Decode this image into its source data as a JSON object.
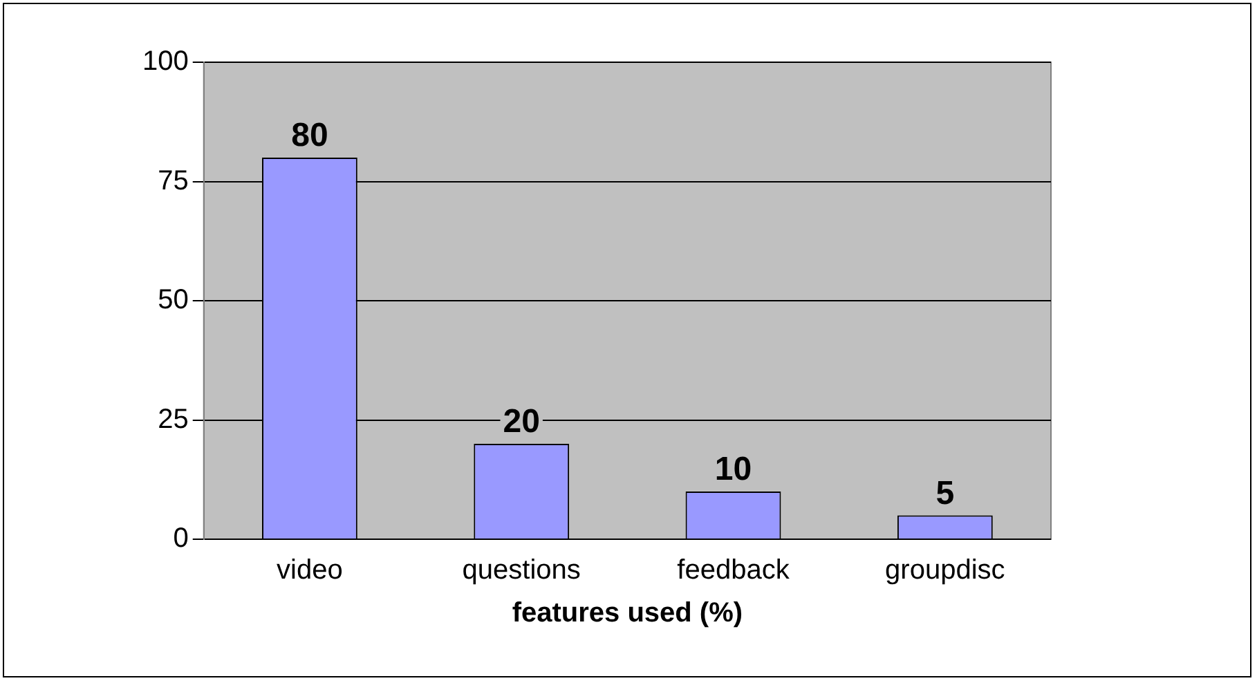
{
  "chart_data": {
    "type": "bar",
    "xlabel": "features used (%)",
    "categories": [
      "video",
      "questions",
      "feedback",
      "groupdisc"
    ],
    "values": [
      80,
      20,
      10,
      5
    ],
    "color": "#9999ff",
    "ylim": [
      0,
      100
    ],
    "yticks": [
      0,
      25,
      50,
      75,
      100
    ],
    "grid": "y",
    "data_labels": true,
    "legend": false
  }
}
